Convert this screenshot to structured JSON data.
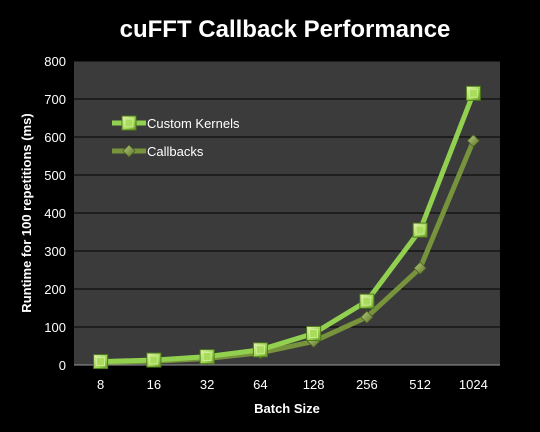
{
  "chart_data": {
    "type": "line",
    "title": "cuFFT Callback Performance",
    "xlabel": "Batch Size",
    "ylabel": "Runtime for 100 repetitions (ms)",
    "categories": [
      "8",
      "16",
      "32",
      "64",
      "128",
      "256",
      "512",
      "1024"
    ],
    "ylim": [
      0,
      800
    ],
    "yticks": [
      0,
      100,
      200,
      300,
      400,
      500,
      600,
      700,
      800
    ],
    "grid": true,
    "legend_position": "top-left",
    "series": [
      {
        "name": "Custom Kernels",
        "values": [
          9,
          13,
          22,
          40,
          83,
          168,
          355,
          715
        ],
        "marker": "square",
        "color": "#92d050"
      },
      {
        "name": "Callbacks",
        "values": [
          7,
          10,
          17,
          32,
          62,
          126,
          255,
          590
        ],
        "marker": "diamond",
        "color": "#77933c"
      }
    ],
    "colors": {
      "background": "#000000",
      "plot_area": "#3b3b3b",
      "gridline": "#000000",
      "text": "#ffffff"
    }
  }
}
